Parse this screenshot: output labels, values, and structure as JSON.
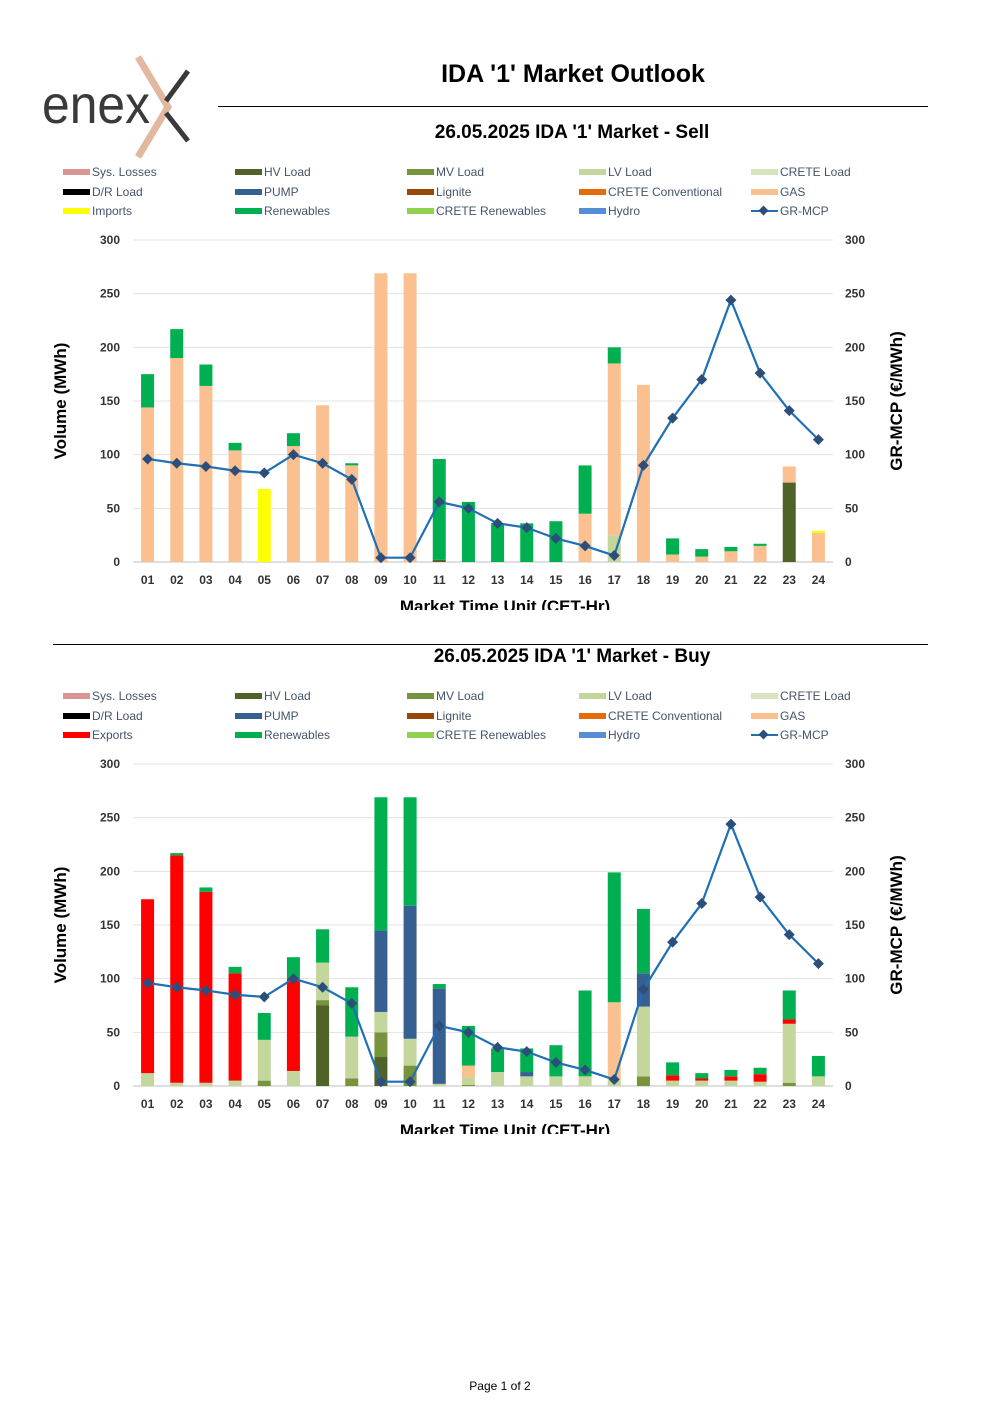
{
  "header": {
    "brand": "enex",
    "title": "IDA '1' Market Outlook"
  },
  "footer": {
    "page_label": "Page 1 of 2"
  },
  "chart_data": [
    {
      "type": "bar",
      "stacked": true,
      "title": "26.05.2025  IDA '1' Market - Sell",
      "xlabel": "Market Time Unit (CET-Hr)",
      "ylabel": "Volume (MWh)",
      "y2label": "GR-MCP (€/MWh)",
      "ylim": [
        0,
        300
      ],
      "y2lim": [
        0,
        300
      ],
      "yticks": [
        0,
        50,
        100,
        150,
        200,
        250,
        300
      ],
      "grid": true,
      "legend_position": "top",
      "categories": [
        "01",
        "02",
        "03",
        "04",
        "05",
        "06",
        "07",
        "08",
        "09",
        "10",
        "11",
        "12",
        "13",
        "14",
        "15",
        "16",
        "17",
        "18",
        "19",
        "20",
        "21",
        "22",
        "23",
        "24"
      ],
      "legend": [
        {
          "name": "Sys. Losses",
          "color": "#da9694"
        },
        {
          "name": "HV Load",
          "color": "#4f6228"
        },
        {
          "name": "MV Load",
          "color": "#77933c"
        },
        {
          "name": "LV Load",
          "color": "#c3d69b"
        },
        {
          "name": "CRETE Load",
          "color": "#d7e4bd"
        },
        {
          "name": "D/R Load",
          "color": "#000000"
        },
        {
          "name": "PUMP",
          "color": "#376092"
        },
        {
          "name": "Lignite",
          "color": "#974706"
        },
        {
          "name": "CRETE Conventional",
          "color": "#e46c0a"
        },
        {
          "name": "GAS",
          "color": "#fac090"
        },
        {
          "name": "Imports",
          "color": "#ffff00"
        },
        {
          "name": "Renewables",
          "color": "#00b050"
        },
        {
          "name": "CRETE Renewables",
          "color": "#92d050"
        },
        {
          "name": "Hydro",
          "color": "#558ed5"
        },
        {
          "name": "GR-MCP",
          "color": "#1f6fb5",
          "line": true
        }
      ],
      "series": [
        {
          "name": "HV Load",
          "color": "#4f6228",
          "values": [
            0,
            0,
            0,
            0,
            0,
            0,
            0,
            0,
            0,
            0,
            2,
            0,
            0,
            0,
            0,
            0,
            0,
            0,
            0,
            0,
            0,
            0,
            74,
            0
          ]
        },
        {
          "name": "LV Load",
          "color": "#c3d69b",
          "values": [
            0,
            0,
            0,
            0,
            0,
            0,
            0,
            0,
            0,
            0,
            0,
            0,
            0,
            0,
            0,
            0,
            25,
            0,
            0,
            0,
            0,
            0,
            0,
            0
          ]
        },
        {
          "name": "GAS",
          "color": "#fac090",
          "values": [
            144,
            190,
            164,
            104,
            0,
            108,
            146,
            90,
            269,
            269,
            0,
            0,
            0,
            0,
            0,
            45,
            160,
            165,
            7,
            5,
            10,
            15,
            15,
            27
          ]
        },
        {
          "name": "Imports",
          "color": "#ffff00",
          "values": [
            0,
            0,
            0,
            0,
            68,
            0,
            0,
            0,
            0,
            0,
            0,
            0,
            0,
            0,
            0,
            0,
            0,
            0,
            0,
            0,
            0,
            0,
            0,
            2
          ]
        },
        {
          "name": "Renewables",
          "color": "#00b050",
          "values": [
            31,
            27,
            20,
            7,
            0,
            12,
            0,
            2,
            0,
            0,
            94,
            56,
            36,
            36,
            38,
            45,
            15,
            0,
            15,
            7,
            4,
            2,
            0,
            0
          ]
        }
      ],
      "line_series": {
        "name": "GR-MCP",
        "axis": "right",
        "color": "#1f6fb5",
        "marker": "#2e4e7a",
        "values": [
          96,
          92,
          89,
          85,
          83,
          100,
          92,
          77,
          4,
          4,
          56,
          50,
          36,
          32,
          22,
          15,
          6,
          90,
          134,
          170,
          244,
          176,
          141,
          114
        ]
      }
    },
    {
      "type": "bar",
      "stacked": true,
      "title": "26.05.2025  IDA '1' Market - Buy",
      "xlabel": "Market Time Unit (CET-Hr)",
      "ylabel": "Volume (MWh)",
      "y2label": "GR-MCP (€/MWh)",
      "ylim": [
        0,
        300
      ],
      "y2lim": [
        0,
        300
      ],
      "yticks": [
        0,
        50,
        100,
        150,
        200,
        250,
        300
      ],
      "grid": true,
      "legend_position": "top",
      "categories": [
        "01",
        "02",
        "03",
        "04",
        "05",
        "06",
        "07",
        "08",
        "09",
        "10",
        "11",
        "12",
        "13",
        "14",
        "15",
        "16",
        "17",
        "18",
        "19",
        "20",
        "21",
        "22",
        "23",
        "24"
      ],
      "legend": [
        {
          "name": "Sys. Losses",
          "color": "#da9694"
        },
        {
          "name": "HV Load",
          "color": "#4f6228"
        },
        {
          "name": "MV Load",
          "color": "#77933c"
        },
        {
          "name": "LV Load",
          "color": "#c3d69b"
        },
        {
          "name": "CRETE Load",
          "color": "#d7e4bd"
        },
        {
          "name": "D/R Load",
          "color": "#000000"
        },
        {
          "name": "PUMP",
          "color": "#376092"
        },
        {
          "name": "Lignite",
          "color": "#974706"
        },
        {
          "name": "CRETE Conventional",
          "color": "#e46c0a"
        },
        {
          "name": "GAS",
          "color": "#fac090"
        },
        {
          "name": "Exports",
          "color": "#ff0000"
        },
        {
          "name": "Renewables",
          "color": "#00b050"
        },
        {
          "name": "CRETE Renewables",
          "color": "#92d050"
        },
        {
          "name": "Hydro",
          "color": "#558ed5"
        },
        {
          "name": "GR-MCP",
          "color": "#1f6fb5",
          "line": true
        }
      ],
      "series": [
        {
          "name": "HV Load",
          "color": "#4f6228",
          "values": [
            0,
            0,
            0,
            0,
            0,
            0,
            75,
            0,
            27,
            0,
            0,
            0,
            0,
            0,
            0,
            0,
            0,
            0,
            0,
            0,
            0,
            0,
            0,
            0
          ]
        },
        {
          "name": "MV Load",
          "color": "#77933c",
          "values": [
            0,
            0,
            0,
            0,
            5,
            0,
            5,
            7,
            23,
            19,
            0,
            1,
            0,
            0,
            0,
            0,
            0,
            9,
            0,
            0,
            0,
            0,
            3,
            0
          ]
        },
        {
          "name": "LV Load",
          "color": "#c3d69b",
          "values": [
            12,
            3,
            3,
            5,
            38,
            14,
            35,
            39,
            19,
            25,
            2,
            7,
            13,
            9,
            9,
            9,
            5,
            65,
            5,
            5,
            5,
            4,
            55,
            9
          ]
        },
        {
          "name": "PUMP",
          "color": "#376092",
          "values": [
            0,
            0,
            0,
            0,
            0,
            0,
            0,
            0,
            76,
            124,
            89,
            0,
            0,
            4,
            0,
            0,
            0,
            31,
            0,
            0,
            0,
            0,
            0,
            0
          ]
        },
        {
          "name": "GAS",
          "color": "#fac090",
          "values": [
            0,
            0,
            0,
            0,
            0,
            0,
            0,
            0,
            0,
            0,
            0,
            11,
            0,
            0,
            0,
            0,
            73,
            0,
            0,
            0,
            0,
            0,
            0,
            0
          ]
        },
        {
          "name": "Exports",
          "color": "#ff0000",
          "values": [
            162,
            212,
            178,
            100,
            0,
            86,
            0,
            0,
            0,
            0,
            0,
            0,
            0,
            0,
            0,
            0,
            0,
            0,
            5,
            2,
            4,
            7,
            4,
            0
          ]
        },
        {
          "name": "Renewables",
          "color": "#00b050",
          "values": [
            0,
            2,
            4,
            6,
            25,
            20,
            31,
            46,
            124,
            101,
            4,
            37,
            22,
            22,
            29,
            80,
            121,
            60,
            12,
            5,
            6,
            6,
            27,
            19
          ]
        }
      ],
      "line_series": {
        "name": "GR-MCP",
        "axis": "right",
        "color": "#1f6fb5",
        "marker": "#2e4e7a",
        "values": [
          96,
          92,
          89,
          85,
          83,
          100,
          92,
          77,
          4,
          4,
          56,
          50,
          36,
          32,
          22,
          15,
          6,
          90,
          134,
          170,
          244,
          176,
          141,
          114
        ]
      }
    }
  ]
}
